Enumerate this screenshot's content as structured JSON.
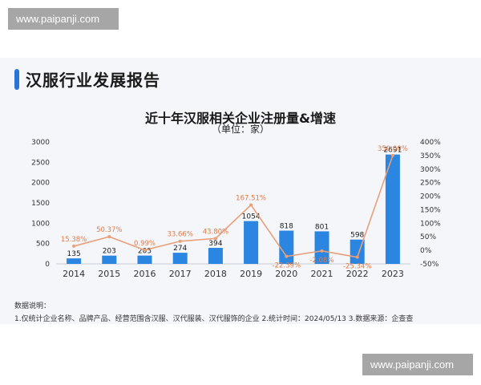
{
  "watermark": {
    "text": "www.paipanji.com"
  },
  "header": {
    "title": "汉服行业发展报告"
  },
  "notes": {
    "heading": "数据说明：",
    "line": "1.仅统计企业名称、品牌产品、经营范围含汉服、汉代服装、汉代服饰的企业  2.统计时间：2024/05/13    3.数据来源：企查查"
  },
  "chart_data": {
    "type": "bar",
    "title": "近十年汉服相关企业注册量&增速",
    "subtitle": "（单位：家）",
    "categories": [
      "2014",
      "2015",
      "2016",
      "2017",
      "2018",
      "2019",
      "2020",
      "2021",
      "2022",
      "2023"
    ],
    "series": [
      {
        "kind": "bar",
        "axis": "left",
        "color": "#2a86e0",
        "values": [
          135,
          203,
          205,
          274,
          394,
          1054,
          818,
          801,
          598,
          2691
        ],
        "labels": [
          "135",
          "203",
          "205",
          "274",
          "394",
          "1054",
          "818",
          "801",
          "598",
          "2691"
        ]
      },
      {
        "kind": "line",
        "axis": "right",
        "color": "#e8a07a",
        "label_color": "#e07b45",
        "values": [
          15.38,
          50.37,
          0.99,
          33.66,
          43.8,
          167.51,
          -22.39,
          -2.08,
          -25.34,
          350.0
        ],
        "labels": [
          "15.38%",
          "50.37%",
          "0.99%",
          "33.66%",
          "43.80%",
          "167.51%",
          "-22.39%",
          "-2.08%",
          "-25.34%",
          "350.00%"
        ]
      }
    ],
    "ylim_left": [
      0,
      3000
    ],
    "yticks_left": [
      "0",
      "500",
      "1000",
      "1500",
      "2000",
      "2500",
      "3000"
    ],
    "ylim_right": [
      -50,
      400
    ],
    "yticks_right": [
      "-50%",
      "0%",
      "50%",
      "100%",
      "150%",
      "200%",
      "250%",
      "300%",
      "350%",
      "400%"
    ],
    "grid": false,
    "legend": "none"
  }
}
